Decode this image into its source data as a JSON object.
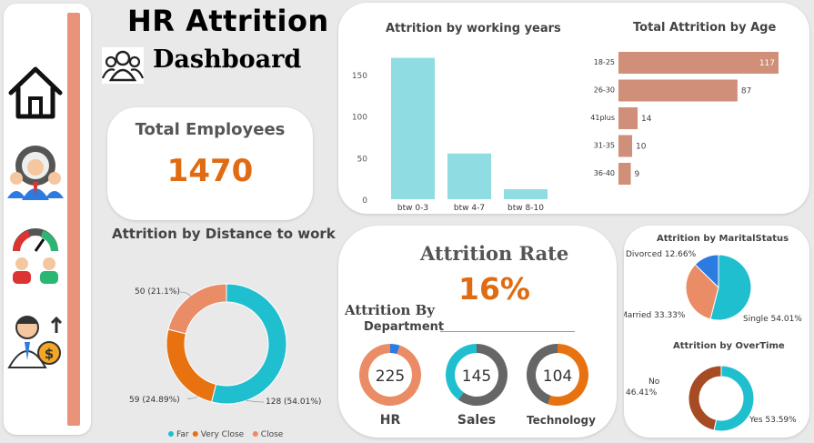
{
  "header": {
    "title_line1": "HR Attrition",
    "title_line2": "Dashboard",
    "icon": "people-group-icon"
  },
  "sidebar": {
    "items": [
      {
        "icon": "home-icon"
      },
      {
        "icon": "employee-gear-icon"
      },
      {
        "icon": "team-performance-icon"
      },
      {
        "icon": "salary-growth-icon"
      }
    ]
  },
  "total_employees": {
    "label": "Total Employees",
    "value": "1470"
  },
  "attrition_rate": {
    "label": "Attrition Rate",
    "value": "16%"
  },
  "department": {
    "title_line1": "Attrition By",
    "title_line2": "Department",
    "items": [
      {
        "name": "HR",
        "value": "225"
      },
      {
        "name": "Sales",
        "value": "145"
      },
      {
        "name": "Technology",
        "value": "104"
      }
    ]
  },
  "chart_data": [
    {
      "type": "bar",
      "title": "Attrition by working years",
      "categories": [
        "btw 0-3",
        "btw 4-7",
        "btw 8-10"
      ],
      "values": [
        170,
        55,
        12
      ],
      "ylim": [
        0,
        175
      ],
      "yticks": [
        "0",
        "50",
        "100",
        "150"
      ],
      "grid": false,
      "color": "#8fdce3"
    },
    {
      "type": "bar",
      "orientation": "horizontal",
      "title": "Total Attrition by Age",
      "categories": [
        "18-25",
        "26-30",
        "41plus",
        "31-35",
        "36-40"
      ],
      "values": [
        117,
        87,
        14,
        10,
        9
      ],
      "labels": [
        "117",
        "87",
        "14",
        "10",
        "9"
      ],
      "color": "#cf8f78"
    },
    {
      "type": "pie",
      "subtype": "donut",
      "title": "Attrition by Distance to work",
      "series": [
        {
          "name": "Far",
          "value": 128,
          "label": "128 (54.01%)",
          "color": "#1fbfcf"
        },
        {
          "name": "Very Close",
          "value": 59,
          "label": "59 (24.89%)",
          "color": "#e8720f"
        },
        {
          "name": "Close",
          "value": 50,
          "label": "50 (21.1%)",
          "color": "#ea8c66"
        }
      ],
      "legend": "bottom"
    },
    {
      "type": "pie",
      "title": "Attrition by MaritalStatus",
      "series": [
        {
          "name": "Single",
          "value": 54.01,
          "label": "Single 54.01%",
          "color": "#1fbfcf"
        },
        {
          "name": "Married",
          "value": 33.33,
          "label": "Married 33.33%",
          "color": "#ea8c66"
        },
        {
          "name": "Divorced",
          "value": 12.66,
          "label": "Divorced 12.66%",
          "color": "#2b7be0"
        }
      ]
    },
    {
      "type": "pie",
      "subtype": "donut",
      "title": "Attrition by OverTime",
      "series": [
        {
          "name": "Yes",
          "value": 53.59,
          "label": "Yes 53.59%",
          "color": "#1fbfcf"
        },
        {
          "name": "No",
          "value": 46.41,
          "label": "No 46.41%",
          "color": "#a64b24"
        }
      ]
    }
  ],
  "dept_donuts": [
    {
      "share": 0.05,
      "main": "#ea8c66",
      "accent": "#2b7be0"
    },
    {
      "share": 0.6,
      "main": "#1fbfcf",
      "accent": "#666666"
    },
    {
      "share": 0.55,
      "main": "#666666",
      "accent": "#e8720f"
    }
  ]
}
